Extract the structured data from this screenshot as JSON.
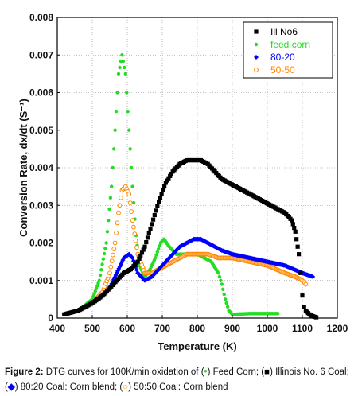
{
  "chart_data": {
    "type": "scatter",
    "xlabel": "Temperature (K)",
    "ylabel": "Conversion Rate, dx/dt (S⁻¹)",
    "xlim": [
      400,
      1200
    ],
    "ylim": [
      0,
      0.008
    ],
    "x_ticks": [
      "400",
      "500",
      "600",
      "700",
      "800",
      "900",
      "1000",
      "1100",
      "1200"
    ],
    "y_ticks": [
      "0",
      "0.001",
      "0.002",
      "0.003",
      "0.004",
      "0.005",
      "0.006",
      "0.007",
      "0.008"
    ],
    "grid": "dotted",
    "legend_position": "top-right",
    "series": [
      {
        "name": "Ill No6",
        "color": "#000000",
        "marker": "square",
        "x": [
          420,
          460,
          500,
          530,
          550,
          570,
          590,
          610,
          630,
          650,
          670,
          690,
          710,
          730,
          750,
          770,
          790,
          810,
          830,
          850,
          870,
          890,
          910,
          930,
          950,
          970,
          990,
          1010,
          1030,
          1050,
          1070,
          1080,
          1090,
          1095,
          1100,
          1105,
          1110,
          1120,
          1130,
          1140
        ],
        "y": [
          0.0001,
          0.0002,
          0.0004,
          0.0006,
          0.0008,
          0.001,
          0.0012,
          0.0013,
          0.0015,
          0.0019,
          0.0025,
          0.0031,
          0.0036,
          0.0039,
          0.0041,
          0.0042,
          0.0042,
          0.0042,
          0.0041,
          0.0039,
          0.0037,
          0.0036,
          0.0035,
          0.0034,
          0.0033,
          0.0032,
          0.0031,
          0.003,
          0.0029,
          0.0028,
          0.0026,
          0.0023,
          0.0017,
          0.0012,
          0.0006,
          0.0003,
          0.0002,
          0.0001,
          5e-05,
          2e-05
        ]
      },
      {
        "name": "feed corn",
        "color": "#22dd22",
        "marker": "circle",
        "x": [
          420,
          460,
          500,
          520,
          540,
          555,
          565,
          575,
          585,
          595,
          605,
          615,
          625,
          635,
          650,
          665,
          680,
          695,
          705,
          720,
          740,
          760,
          780,
          800,
          820,
          840,
          860,
          870,
          880,
          890,
          900,
          950,
          1000,
          1030
        ],
        "y": [
          0.0001,
          0.0002,
          0.0005,
          0.001,
          0.002,
          0.0035,
          0.005,
          0.0065,
          0.007,
          0.0065,
          0.005,
          0.0035,
          0.0022,
          0.0014,
          0.0011,
          0.0013,
          0.0016,
          0.002,
          0.0021,
          0.0019,
          0.0017,
          0.0017,
          0.0017,
          0.0017,
          0.0016,
          0.0015,
          0.0012,
          0.0009,
          0.0005,
          0.0002,
          0.0001,
          0.00012,
          0.00012,
          0.00012
        ]
      },
      {
        "name": "80-20",
        "color": "#0000ff",
        "marker": "diamond",
        "x": [
          420,
          460,
          500,
          530,
          550,
          570,
          590,
          605,
          615,
          630,
          650,
          670,
          690,
          710,
          730,
          750,
          770,
          790,
          810,
          830,
          850,
          870,
          900,
          950,
          1000,
          1050,
          1100,
          1130
        ],
        "y": [
          0.0001,
          0.0002,
          0.0004,
          0.0006,
          0.0008,
          0.0012,
          0.0016,
          0.0017,
          0.0016,
          0.0012,
          0.001,
          0.0011,
          0.0013,
          0.0015,
          0.0017,
          0.0019,
          0.002,
          0.0021,
          0.0021,
          0.002,
          0.0019,
          0.0018,
          0.0017,
          0.0016,
          0.0015,
          0.0014,
          0.0012,
          0.0011
        ]
      },
      {
        "name": "50-50",
        "color": "#ff8800",
        "marker": "open-circle",
        "x": [
          420,
          460,
          500,
          530,
          550,
          565,
          575,
          585,
          595,
          605,
          615,
          630,
          650,
          670,
          690,
          710,
          730,
          750,
          770,
          790,
          810,
          830,
          860,
          900,
          950,
          1000,
          1050,
          1080,
          1100,
          1110
        ],
        "y": [
          0.0001,
          0.0002,
          0.0004,
          0.0007,
          0.0012,
          0.002,
          0.0028,
          0.0034,
          0.0035,
          0.0033,
          0.0026,
          0.0017,
          0.0012,
          0.0012,
          0.0013,
          0.0014,
          0.0015,
          0.0016,
          0.0017,
          0.0017,
          0.0017,
          0.0017,
          0.0016,
          0.0016,
          0.0015,
          0.0014,
          0.0012,
          0.0011,
          0.001,
          0.0009
        ]
      }
    ]
  },
  "caption": {
    "label": "Figure 2:",
    "t1": " DTG curves for 100K/min oxidation of (",
    "sym1": "•",
    "t2": ") Feed Corn; (",
    "sym2": "■",
    "t3": ") Illinois No. 6 Coal; (",
    "sym3": "◆",
    "t4": ") 80:20 Coal: Corn blend; (",
    "sym4": "○",
    "t5": ") 50:50 Coal: Corn blend"
  }
}
